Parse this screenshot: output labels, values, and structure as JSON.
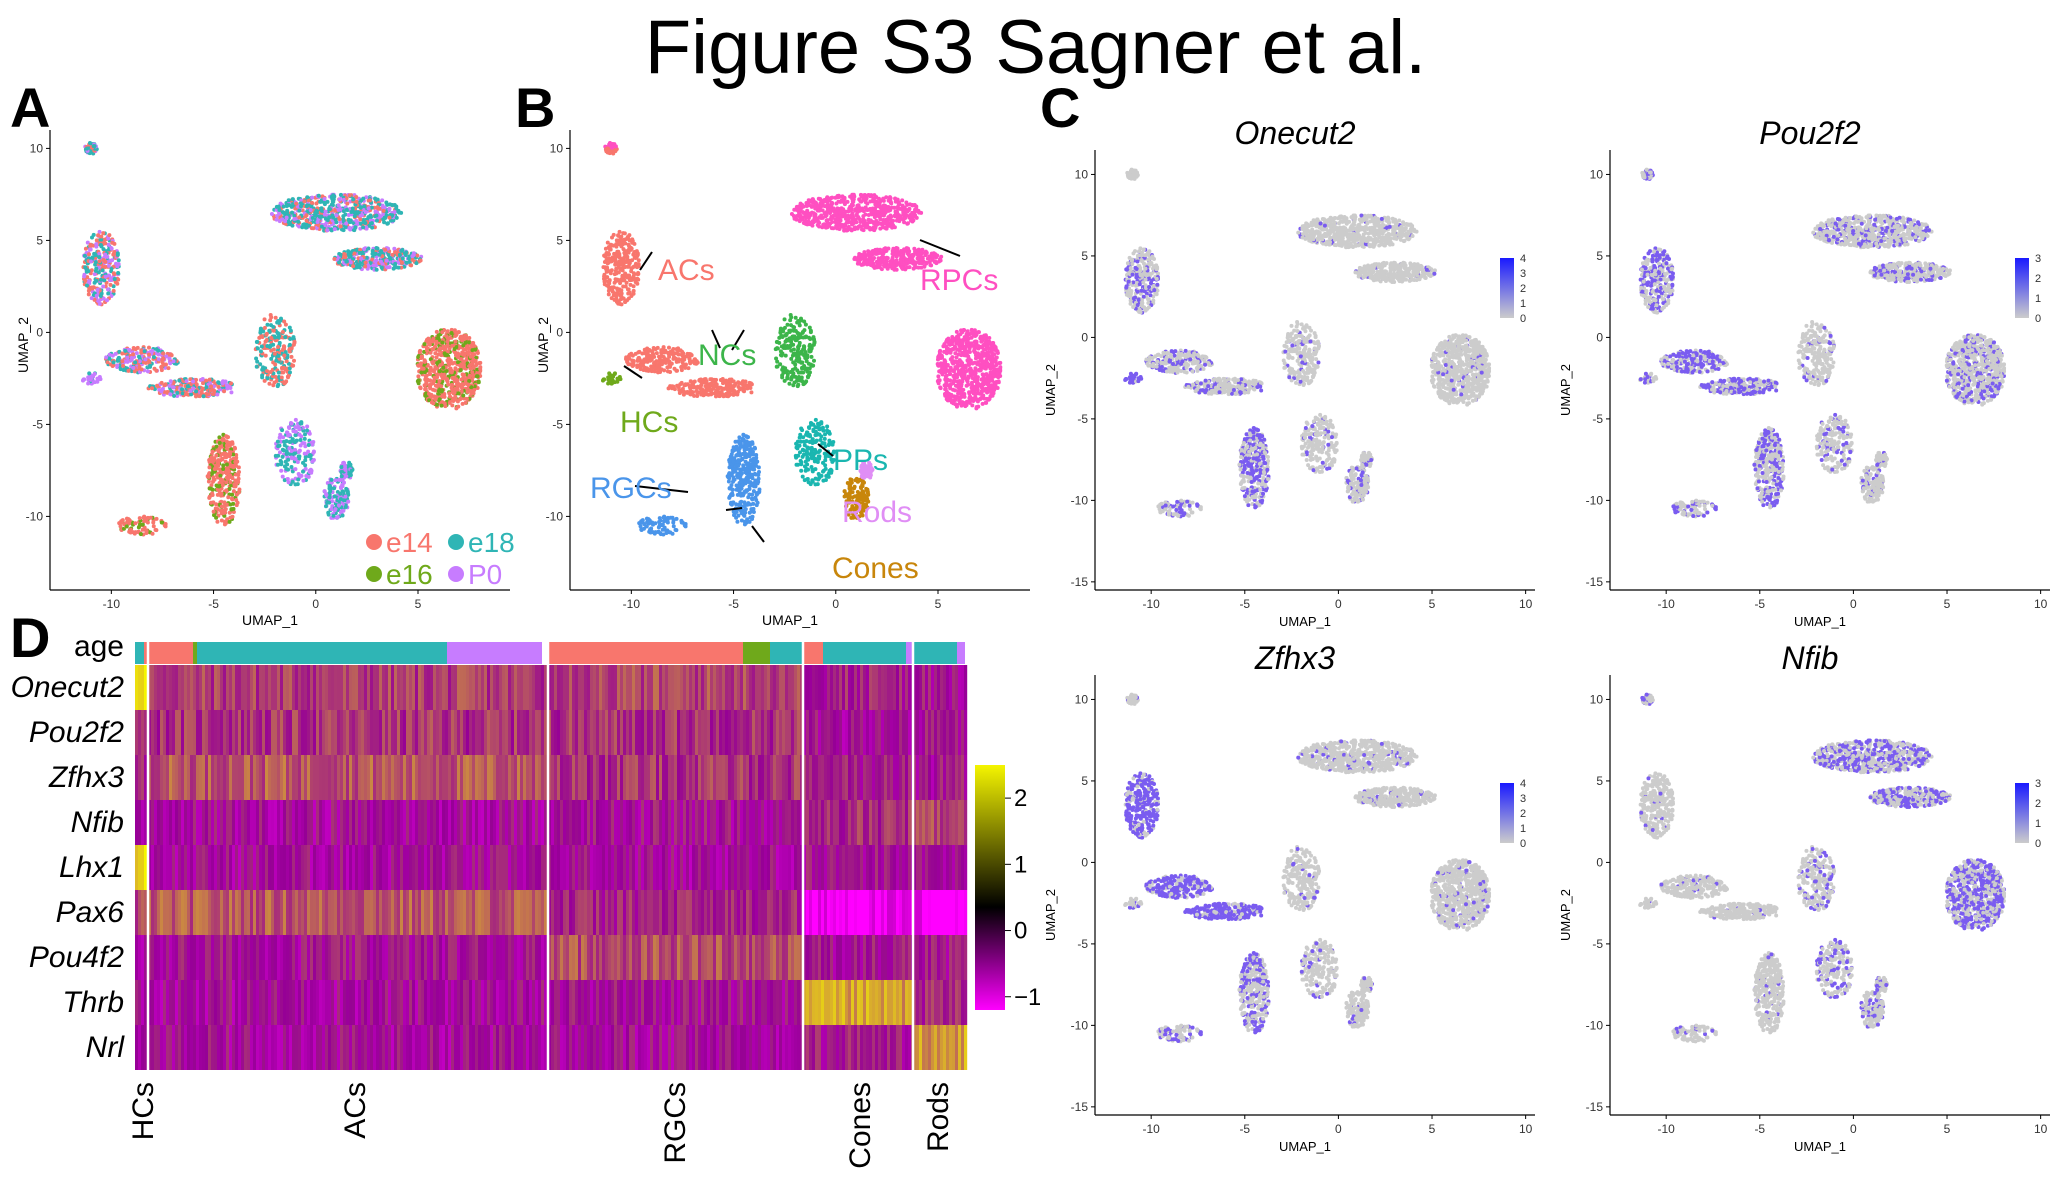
{
  "figure_title": "Figure S3 Sagner et al.",
  "panels": {
    "A": {
      "letter": "A",
      "xlabel": "UMAP_1",
      "ylabel": "UMAP_2",
      "xticks": [
        "-10",
        "-5",
        "0",
        "5"
      ],
      "yticks": [
        "10",
        "5",
        "0",
        "-5",
        "-10"
      ],
      "legend": [
        {
          "label": "e14",
          "color": "#f8766d"
        },
        {
          "label": "e18",
          "color": "#2fb5b5"
        },
        {
          "label": "e16",
          "color": "#6fa91b"
        },
        {
          "label": "P0",
          "color": "#c77cff"
        }
      ]
    },
    "B": {
      "letter": "B",
      "xlabel": "UMAP_1",
      "ylabel": "UMAP_2",
      "xticks": [
        "-10",
        "-5",
        "0",
        "5"
      ],
      "yticks": [
        "10",
        "5",
        "0",
        "-5",
        "-10"
      ],
      "labels": [
        {
          "text": "ACs",
          "color": "#f8766d"
        },
        {
          "text": "RPCs",
          "color": "#ff4fc1"
        },
        {
          "text": "NCs",
          "color": "#3cb54a"
        },
        {
          "text": "HCs",
          "color": "#6fa91b"
        },
        {
          "text": "PPs",
          "color": "#1ab6b0"
        },
        {
          "text": "RGCs",
          "color": "#4a95ea"
        },
        {
          "text": "Rods",
          "color": "#e08ef5"
        },
        {
          "text": "Cones",
          "color": "#c8860b"
        }
      ]
    },
    "C": {
      "letter": "C",
      "xlabel": "UMAP_1",
      "ylabel": "UMAP_2",
      "xticks": [
        "-10",
        "-5",
        "0",
        "5",
        "10"
      ],
      "yticks": [
        "10",
        "5",
        "0",
        "-5",
        "-10",
        "-15"
      ],
      "genes": [
        {
          "name": "Onecut2",
          "scale": [
            "4",
            "3",
            "2",
            "1",
            "0"
          ]
        },
        {
          "name": "Pou2f2",
          "scale": [
            "3",
            "2",
            "1",
            "0"
          ]
        },
        {
          "name": "Zfhx3",
          "scale": [
            "4",
            "3",
            "2",
            "1",
            "0"
          ]
        },
        {
          "name": "Nfib",
          "scale": [
            "3",
            "2",
            "1",
            "0"
          ]
        }
      ]
    },
    "D": {
      "letter": "D",
      "age_label": "age",
      "genes": [
        "Onecut2",
        "Pou2f2",
        "Zfhx3",
        "Nfib",
        "Lhx1",
        "Pax6",
        "Pou4f2",
        "Thrb",
        "Nrl"
      ],
      "cell_types": [
        "HCs",
        "ACs",
        "RGCs",
        "Cones",
        "Rods"
      ],
      "colorbar_ticks": [
        "2",
        "1",
        "0",
        "−1"
      ]
    }
  },
  "colors": {
    "e14": "#f8766d",
    "e16": "#6fa91b",
    "e18": "#2fb5b5",
    "P0": "#c77cff",
    "expr_high": "#1a1aff",
    "expr_low": "#cccccc",
    "heat_high": "#f5f500",
    "heat_mid": "#000000",
    "heat_low": "#ff00ff"
  }
}
